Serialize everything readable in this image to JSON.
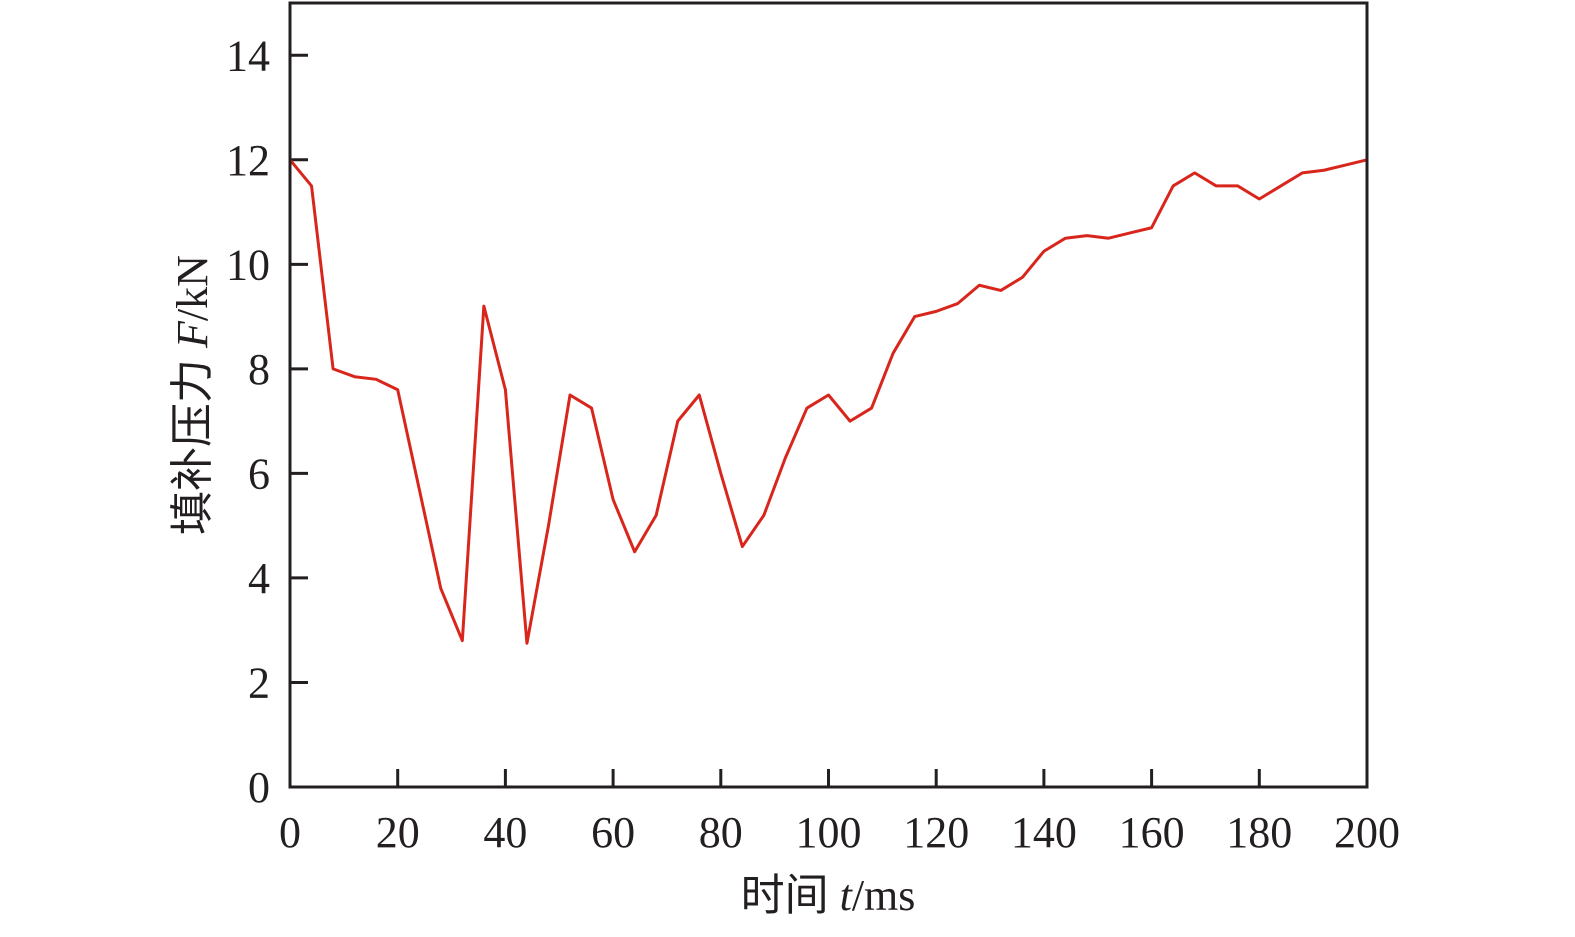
{
  "chart_data": {
    "type": "line",
    "xlabel": {
      "prefix": "时间 ",
      "var": "t",
      "unit": "/ms"
    },
    "ylabel": {
      "prefix": "填补压力 ",
      "var": "F",
      "unit": "/kN"
    },
    "xlim": [
      0,
      200
    ],
    "ylim": [
      0,
      15
    ],
    "xticks": [
      0,
      20,
      40,
      60,
      80,
      100,
      120,
      140,
      160,
      180,
      200
    ],
    "yticks": [
      0,
      2,
      4,
      6,
      8,
      10,
      12,
      14
    ],
    "grid": false,
    "line_color": "#d8261c",
    "series": [
      {
        "x": [
          0,
          4,
          8,
          12,
          16,
          20,
          24,
          28,
          32,
          36,
          40,
          44,
          48,
          52,
          56,
          60,
          64,
          68,
          72,
          76,
          80,
          84,
          88,
          92,
          96,
          100,
          104,
          108,
          112,
          116,
          120,
          124,
          128,
          132,
          136,
          140,
          144,
          148,
          152,
          156,
          160,
          164,
          168,
          172,
          176,
          180,
          184,
          188,
          192,
          196,
          200
        ],
        "y": [
          12.0,
          11.5,
          8.0,
          7.85,
          7.8,
          7.6,
          5.7,
          3.8,
          2.8,
          9.2,
          7.6,
          2.75,
          5.0,
          7.5,
          7.25,
          5.5,
          4.5,
          5.2,
          7.0,
          7.5,
          6.0,
          4.6,
          5.2,
          6.3,
          7.25,
          7.5,
          7.0,
          7.25,
          8.3,
          9.0,
          9.1,
          9.25,
          9.6,
          9.5,
          9.75,
          10.25,
          10.5,
          10.55,
          10.5,
          10.6,
          10.7,
          11.5,
          11.75,
          11.5,
          11.5,
          11.25,
          11.5,
          11.75,
          11.8,
          11.9,
          12.0
        ]
      }
    ]
  }
}
